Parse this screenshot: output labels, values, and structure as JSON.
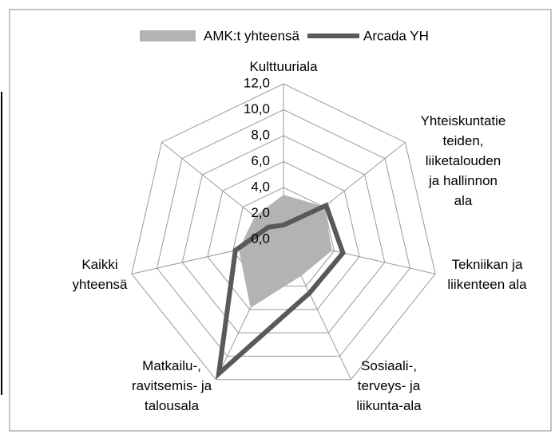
{
  "chart_data": {
    "type": "radar",
    "categories": [
      "Kulttuuriala",
      "Yhteiskuntatie\nteiden,\nliiketalouden\nja hallinnon\nala",
      "Tekniikan ja\nliikenteen ala",
      "Sosiaali-,\nterveys- ja\nliikunta-ala",
      "Matkailu-,\nravitsemis- ja\ntalousala",
      "Kaikki\nyhteensä",
      null
    ],
    "series": [
      {
        "name": "AMK:t yhteensä",
        "color": "#b3b3b3",
        "fill": true,
        "values": [
          3.4,
          4.0,
          3.8,
          3.1,
          5.8,
          3.5,
          2.8
        ]
      },
      {
        "name": "Arcada YH",
        "color": "#595959",
        "fill": false,
        "values": [
          1.1,
          4.2,
          4.7,
          4.6,
          11.5,
          3.8,
          1.5
        ]
      }
    ],
    "ylim": [
      0,
      12
    ],
    "yticks": [
      {
        "value": 0,
        "label": "0,0"
      },
      {
        "value": 2,
        "label": "2,0"
      },
      {
        "value": 4,
        "label": "4,0"
      },
      {
        "value": 6,
        "label": "6,0"
      },
      {
        "value": 8,
        "label": "8,0"
      },
      {
        "value": 10,
        "label": "10,0"
      },
      {
        "value": 12,
        "label": "12,0"
      }
    ],
    "grid": true,
    "legend": "top"
  }
}
